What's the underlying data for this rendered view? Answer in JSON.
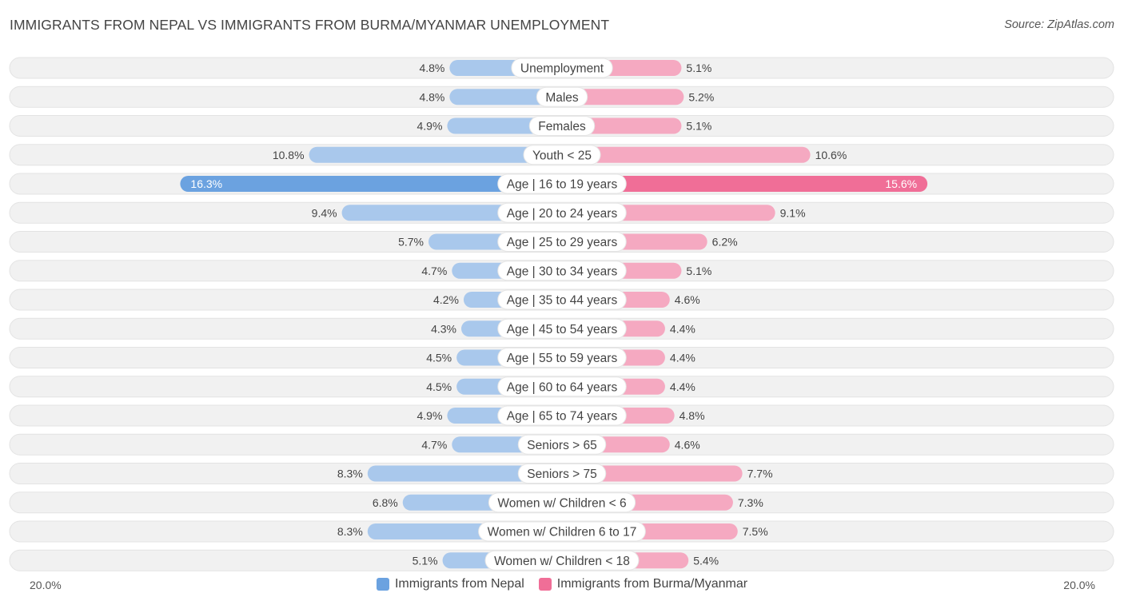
{
  "title": "IMMIGRANTS FROM NEPAL VS IMMIGRANTS FROM BURMA/MYANMAR UNEMPLOYMENT",
  "source": "Source: ZipAtlas.com",
  "colors": {
    "left_light": "#a9c8ec",
    "left_strong": "#6ba2e0",
    "right_light": "#f5a9c1",
    "right_strong": "#f06e97",
    "row_bg": "#f1f1f1"
  },
  "chart_data": {
    "type": "bar",
    "orientation": "horizontal-diverging",
    "title": "IMMIGRANTS FROM NEPAL VS IMMIGRANTS FROM BURMA/MYANMAR UNEMPLOYMENT",
    "axis_max": 20.0,
    "axis_left_label": "20.0%",
    "axis_right_label": "20.0%",
    "unit": "%",
    "categories": [
      "Unemployment",
      "Males",
      "Females",
      "Youth < 25",
      "Age | 16 to 19 years",
      "Age | 20 to 24 years",
      "Age | 25 to 29 years",
      "Age | 30 to 34 years",
      "Age | 35 to 44 years",
      "Age | 45 to 54 years",
      "Age | 55 to 59 years",
      "Age | 60 to 64 years",
      "Age | 65 to 74 years",
      "Seniors > 65",
      "Seniors > 75",
      "Women w/ Children < 6",
      "Women w/ Children 6 to 17",
      "Women w/ Children < 18"
    ],
    "series": [
      {
        "name": "Immigrants from Nepal",
        "side": "left",
        "values": [
          4.8,
          4.8,
          4.9,
          10.8,
          16.3,
          9.4,
          5.7,
          4.7,
          4.2,
          4.3,
          4.5,
          4.5,
          4.9,
          4.7,
          8.3,
          6.8,
          8.3,
          5.1
        ]
      },
      {
        "name": "Immigrants from Burma/Myanmar",
        "side": "right",
        "values": [
          5.1,
          5.2,
          5.1,
          10.6,
          15.6,
          9.1,
          6.2,
          5.1,
          4.6,
          4.4,
          4.4,
          4.4,
          4.8,
          4.6,
          7.7,
          7.3,
          7.5,
          5.4
        ]
      }
    ],
    "legend": [
      "Immigrants from Nepal",
      "Immigrants from Burma/Myanmar"
    ],
    "legend_position": "bottom-center"
  }
}
